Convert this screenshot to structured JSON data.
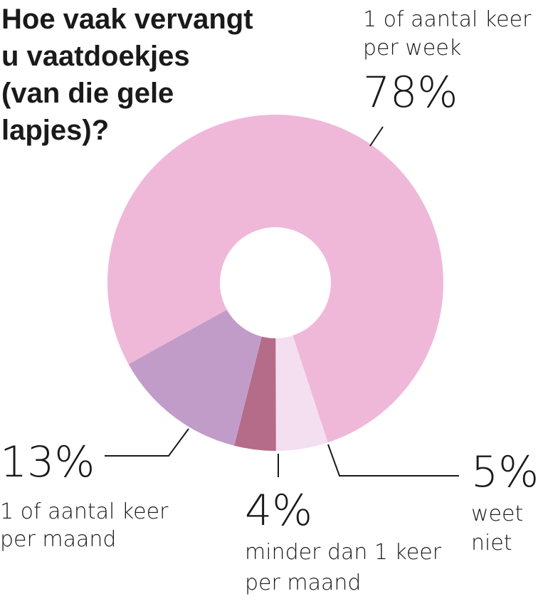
{
  "chart_data": {
    "type": "pie",
    "title_lines": [
      "Hoe vaak vervangt",
      "u vaatdoekjes",
      "(van die gele",
      "lapjes)?"
    ],
    "slices": [
      {
        "label_lines": [
          "1 of aantal keer",
          "per week"
        ],
        "pct_label": "78%",
        "value": 78,
        "color": "#efb8d8"
      },
      {
        "label_lines": [
          "weet",
          "niet"
        ],
        "pct_label": "5%",
        "value": 5,
        "color": "#f4dff0"
      },
      {
        "label_lines": [
          "minder dan 1 keer",
          "per maand"
        ],
        "pct_label": "4%",
        "value": 4,
        "color": "#b56c88"
      },
      {
        "label_lines": [
          "1 of aantal keer",
          "per maand"
        ],
        "pct_label": "13%",
        "value": 13,
        "color": "#c29cc9"
      }
    ]
  }
}
